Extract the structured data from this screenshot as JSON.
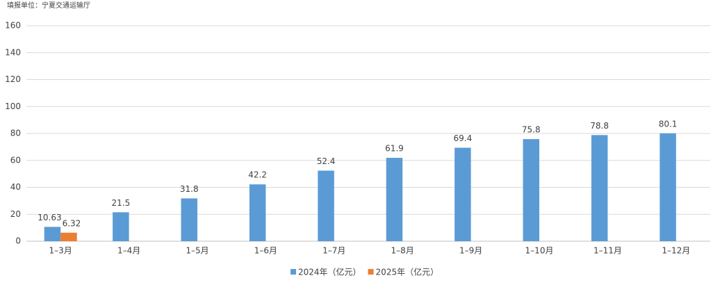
{
  "chart_data": {
    "type": "bar",
    "subtitle": "填报单位：宁夏交通运输厅",
    "categories": [
      "1–3月",
      "1–4月",
      "1–5月",
      "1–6月",
      "1–7月",
      "1–8月",
      "1–9月",
      "1–10月",
      "1–11月",
      "1–12月"
    ],
    "series": [
      {
        "name": "2024年（亿元）",
        "color": "#5b9bd5",
        "values": [
          10.63,
          21.5,
          31.8,
          42.2,
          52.4,
          61.9,
          69.4,
          75.8,
          78.8,
          80.1
        ]
      },
      {
        "name": "2025年（亿元）",
        "color": "#ed7d31",
        "values": [
          6.32,
          null,
          null,
          null,
          null,
          null,
          null,
          null,
          null,
          null
        ]
      }
    ],
    "ylim": [
      0,
      160
    ],
    "yticks": [
      0,
      20,
      40,
      60,
      80,
      100,
      120,
      140,
      160
    ],
    "grid": true,
    "legend": "bottom"
  }
}
